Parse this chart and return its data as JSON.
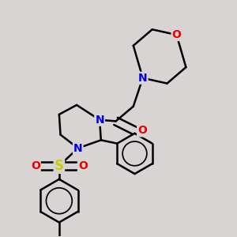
{
  "background_color": "#d8d4d4",
  "bond_color": "#000000",
  "bond_width": 1.8,
  "atom_colors": {
    "N": "#0000ee",
    "O": "#ee0000",
    "S": "#cccc00",
    "C": "#000000"
  },
  "font_size": 10,
  "fig_width": 3.0,
  "fig_height": 3.0,
  "dpi": 100
}
